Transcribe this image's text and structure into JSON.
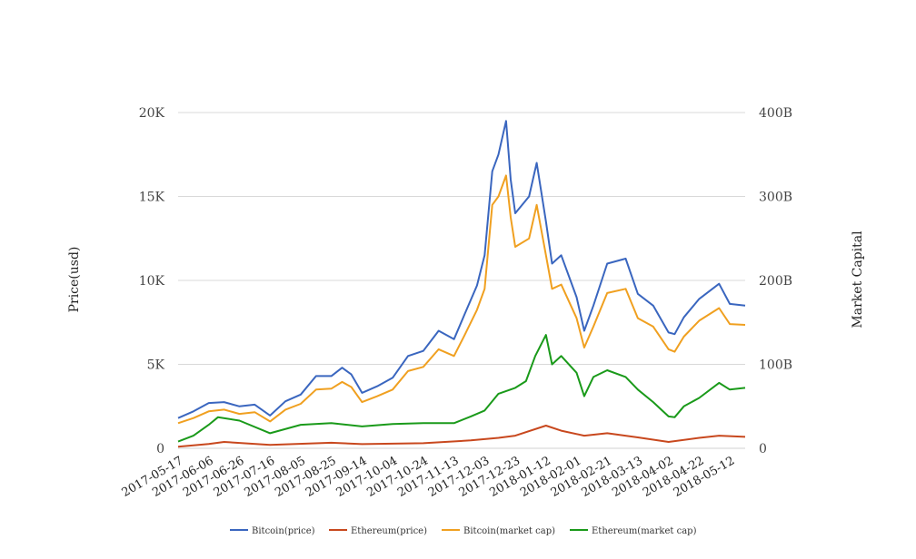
{
  "chart_data": {
    "type": "line",
    "x_axis": {
      "type": "date",
      "range": [
        "2017-05-17",
        "2018-05-22"
      ],
      "tick_labels": [
        "2017-05-17",
        "2017-06-06",
        "2017-06-26",
        "2017-07-16",
        "2017-08-05",
        "2017-08-25",
        "2017-09-14",
        "2017-10-04",
        "2017-10-24",
        "2017-11-13",
        "2017-12-03",
        "2017-12-23",
        "2018-01-12",
        "2018-02-01",
        "2018-02-21",
        "2018-03-13",
        "2018-04-02",
        "2018-04-22",
        "2018-05-12"
      ]
    },
    "y_left": {
      "label": "Price(usd)",
      "range": [
        0,
        20000
      ],
      "tick_values": [
        0,
        5000,
        10000,
        15000,
        20000
      ],
      "tick_labels": [
        "0",
        "5K",
        "10K",
        "15K",
        "20K"
      ]
    },
    "y_right": {
      "label": "Market Capital",
      "range": [
        0,
        400000000000
      ],
      "tick_values": [
        0,
        100000000000,
        200000000000,
        300000000000,
        400000000000
      ],
      "tick_labels": [
        "0",
        "100B",
        "200B",
        "300B",
        "400B"
      ]
    },
    "grid": true,
    "legend_position": "bottom",
    "series": [
      {
        "name": "Bitcoin(price)",
        "axis": "left",
        "color": "#3a66bf",
        "x": [
          "2017-05-17",
          "2017-05-27",
          "2017-06-06",
          "2017-06-16",
          "2017-06-26",
          "2017-07-06",
          "2017-07-16",
          "2017-07-26",
          "2017-08-05",
          "2017-08-15",
          "2017-08-25",
          "2017-09-01",
          "2017-09-07",
          "2017-09-14",
          "2017-09-24",
          "2017-10-04",
          "2017-10-14",
          "2017-10-24",
          "2017-11-03",
          "2017-11-13",
          "2017-11-20",
          "2017-11-28",
          "2017-12-03",
          "2017-12-08",
          "2017-12-12",
          "2017-12-17",
          "2017-12-20",
          "2017-12-23",
          "2018-01-01",
          "2018-01-06",
          "2018-01-12",
          "2018-01-16",
          "2018-01-22",
          "2018-02-01",
          "2018-02-06",
          "2018-02-12",
          "2018-02-21",
          "2018-03-05",
          "2018-03-13",
          "2018-03-23",
          "2018-04-02",
          "2018-04-06",
          "2018-04-12",
          "2018-04-22",
          "2018-05-05",
          "2018-05-12",
          "2018-05-22"
        ],
        "y": [
          1800,
          2200,
          2700,
          2750,
          2500,
          2600,
          1950,
          2800,
          3200,
          4300,
          4300,
          4800,
          4400,
          3300,
          3700,
          4200,
          5500,
          5800,
          7000,
          6500,
          8000,
          9700,
          11500,
          16500,
          17500,
          19500,
          16000,
          14000,
          15000,
          17000,
          13500,
          11000,
          11500,
          9000,
          7000,
          8500,
          11000,
          11300,
          9200,
          8500,
          6900,
          6800,
          7800,
          8900,
          9800,
          8600,
          8500
        ]
      },
      {
        "name": "Ethereum(price)",
        "axis": "left",
        "color": "#c8481e",
        "x": [
          "2017-05-17",
          "2017-06-06",
          "2017-06-16",
          "2017-07-16",
          "2017-08-25",
          "2017-09-14",
          "2017-10-24",
          "2017-11-24",
          "2017-12-12",
          "2017-12-23",
          "2018-01-12",
          "2018-01-22",
          "2018-02-06",
          "2018-02-21",
          "2018-03-13",
          "2018-04-02",
          "2018-04-22",
          "2018-05-05",
          "2018-05-22"
        ],
        "y": [
          90,
          260,
          380,
          200,
          330,
          250,
          300,
          470,
          620,
          750,
          1350,
          1050,
          750,
          900,
          650,
          380,
          620,
          750,
          680
        ]
      },
      {
        "name": "Bitcoin(market cap)",
        "axis": "right",
        "color": "#f0a020",
        "x": [
          "2017-05-17",
          "2017-05-27",
          "2017-06-06",
          "2017-06-16",
          "2017-06-26",
          "2017-07-06",
          "2017-07-16",
          "2017-07-26",
          "2017-08-05",
          "2017-08-15",
          "2017-08-25",
          "2017-09-01",
          "2017-09-07",
          "2017-09-14",
          "2017-09-24",
          "2017-10-04",
          "2017-10-14",
          "2017-10-24",
          "2017-11-03",
          "2017-11-13",
          "2017-11-20",
          "2017-11-28",
          "2017-12-03",
          "2017-12-08",
          "2017-12-12",
          "2017-12-17",
          "2017-12-20",
          "2017-12-23",
          "2018-01-01",
          "2018-01-06",
          "2018-01-12",
          "2018-01-16",
          "2018-01-22",
          "2018-02-01",
          "2018-02-06",
          "2018-02-12",
          "2018-02-21",
          "2018-03-05",
          "2018-03-13",
          "2018-03-23",
          "2018-04-02",
          "2018-04-06",
          "2018-04-12",
          "2018-04-22",
          "2018-05-05",
          "2018-05-12",
          "2018-05-22"
        ],
        "y": [
          30000000000,
          36000000000,
          44000000000,
          46000000000,
          41000000000,
          43000000000,
          32000000000,
          46000000000,
          53000000000,
          70000000000,
          71000000000,
          79000000000,
          73000000000,
          55000000000,
          62000000000,
          70000000000,
          92000000000,
          97000000000,
          118000000000,
          110000000000,
          135000000000,
          165000000000,
          190000000000,
          290000000000,
          300000000000,
          325000000000,
          275000000000,
          240000000000,
          250000000000,
          290000000000,
          230000000000,
          190000000000,
          195000000000,
          155000000000,
          120000000000,
          145000000000,
          185000000000,
          190000000000,
          155000000000,
          145000000000,
          118000000000,
          115000000000,
          133000000000,
          152000000000,
          167000000000,
          148000000000,
          147000000000
        ]
      },
      {
        "name": "Ethereum(market cap)",
        "axis": "right",
        "color": "#1a9a1a",
        "x": [
          "2017-05-17",
          "2017-05-27",
          "2017-06-06",
          "2017-06-12",
          "2017-06-26",
          "2017-07-16",
          "2017-08-05",
          "2017-08-25",
          "2017-09-14",
          "2017-10-04",
          "2017-10-24",
          "2017-11-13",
          "2017-11-24",
          "2017-12-03",
          "2017-12-12",
          "2017-12-23",
          "2017-12-30",
          "2018-01-05",
          "2018-01-12",
          "2018-01-16",
          "2018-01-22",
          "2018-02-01",
          "2018-02-06",
          "2018-02-12",
          "2018-02-21",
          "2018-03-05",
          "2018-03-13",
          "2018-03-23",
          "2018-04-02",
          "2018-04-06",
          "2018-04-12",
          "2018-04-22",
          "2018-05-05",
          "2018-05-12",
          "2018-05-22"
        ],
        "y": [
          8000000000,
          15000000000,
          28000000000,
          37000000000,
          33000000000,
          18000000000,
          28000000000,
          30000000000,
          26000000000,
          29000000000,
          30000000000,
          30000000000,
          38000000000,
          45000000000,
          65000000000,
          72000000000,
          80000000000,
          110000000000,
          135000000000,
          100000000000,
          110000000000,
          90000000000,
          62000000000,
          85000000000,
          93000000000,
          85000000000,
          70000000000,
          55000000000,
          38000000000,
          37000000000,
          50000000000,
          60000000000,
          78000000000,
          70000000000,
          72000000000
        ]
      }
    ]
  }
}
